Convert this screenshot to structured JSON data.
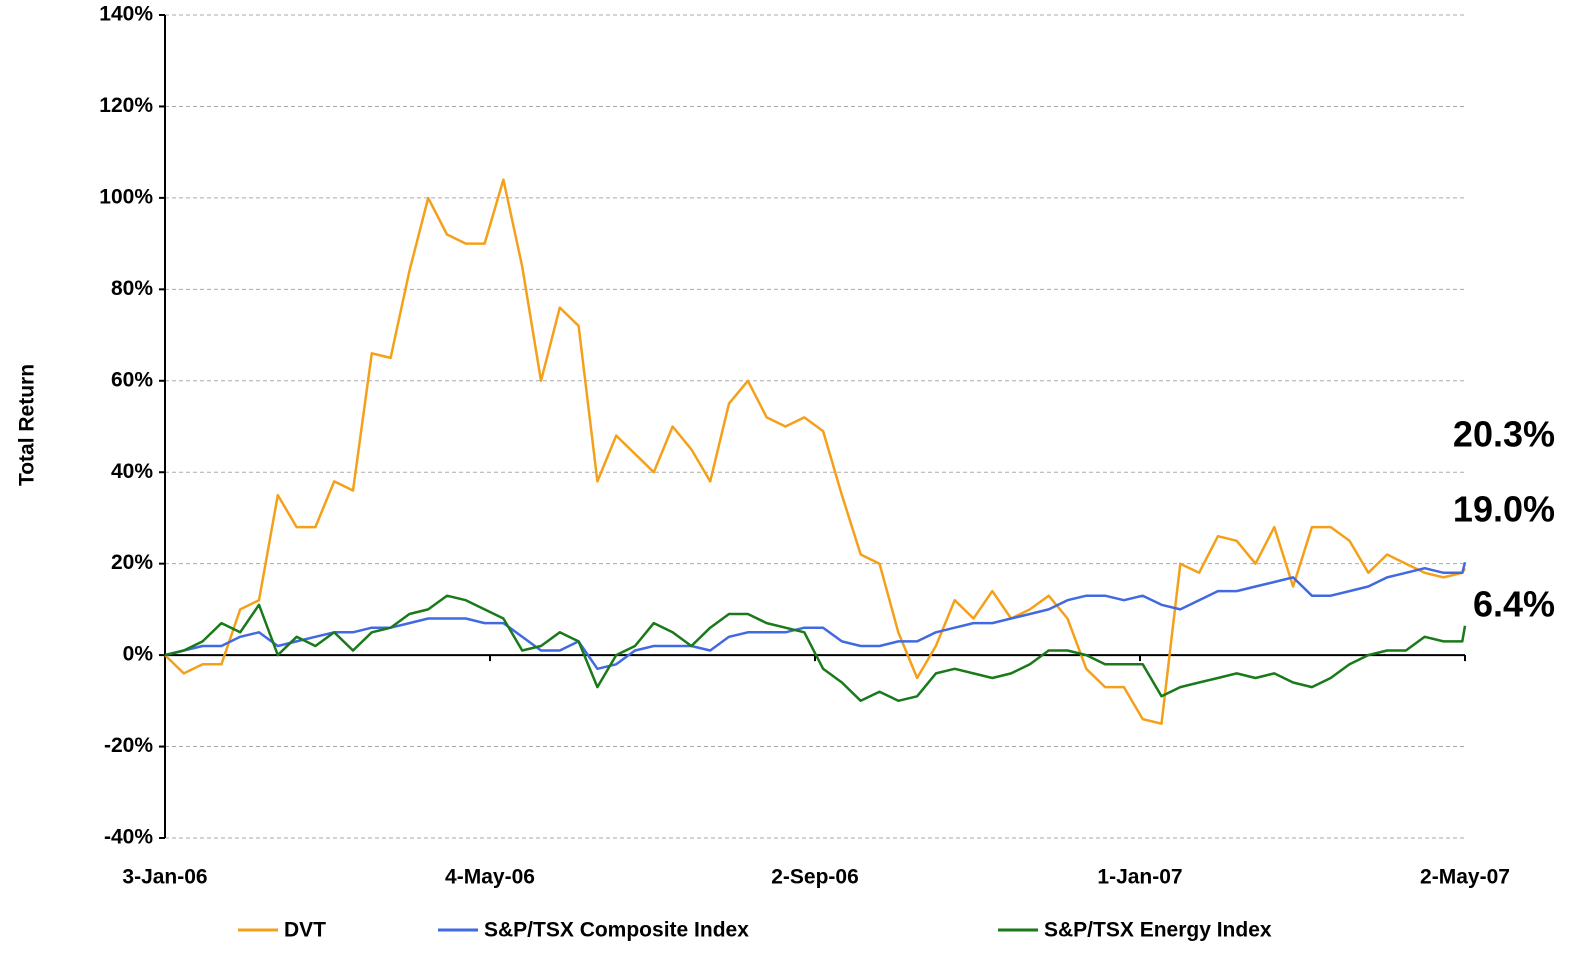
{
  "chart_data": {
    "type": "line",
    "y_label": "Total Return",
    "x": [
      "2006-01-03",
      "2006-01-10",
      "2006-01-17",
      "2006-01-24",
      "2006-01-31",
      "2006-02-07",
      "2006-02-14",
      "2006-02-21",
      "2006-02-28",
      "2006-03-07",
      "2006-03-14",
      "2006-03-21",
      "2006-03-28",
      "2006-04-04",
      "2006-04-11",
      "2006-04-18",
      "2006-04-25",
      "2006-05-02",
      "2006-05-09",
      "2006-05-16",
      "2006-05-23",
      "2006-05-30",
      "2006-06-06",
      "2006-06-13",
      "2006-06-20",
      "2006-06-27",
      "2006-07-04",
      "2006-07-11",
      "2006-07-18",
      "2006-07-25",
      "2006-08-01",
      "2006-08-08",
      "2006-08-15",
      "2006-08-22",
      "2006-08-29",
      "2006-09-05",
      "2006-09-12",
      "2006-09-19",
      "2006-09-26",
      "2006-10-03",
      "2006-10-10",
      "2006-10-17",
      "2006-10-24",
      "2006-10-31",
      "2006-11-07",
      "2006-11-14",
      "2006-11-21",
      "2006-11-28",
      "2006-12-05",
      "2006-12-12",
      "2006-12-19",
      "2006-12-26",
      "2007-01-02",
      "2007-01-09",
      "2007-01-16",
      "2007-01-23",
      "2007-01-30",
      "2007-02-06",
      "2007-02-13",
      "2007-02-20",
      "2007-02-27",
      "2007-03-06",
      "2007-03-13",
      "2007-03-20",
      "2007-03-27",
      "2007-04-03",
      "2007-04-10",
      "2007-04-17",
      "2007-04-24",
      "2007-05-01",
      "2007-05-02"
    ],
    "series": [
      {
        "name": "DVT",
        "color": "#f5a01a",
        "end_label": "19.0%",
        "values": [
          0,
          -4,
          -2,
          -2,
          10,
          12,
          35,
          28,
          28,
          38,
          36,
          66,
          65,
          84,
          100,
          92,
          90,
          90,
          104,
          85,
          60,
          76,
          72,
          38,
          48,
          44,
          40,
          50,
          45,
          38,
          55,
          60,
          52,
          50,
          52,
          49,
          35,
          22,
          20,
          5,
          -5,
          2,
          12,
          8,
          14,
          8,
          10,
          13,
          8,
          -3,
          -7,
          -7,
          -14,
          -15,
          20,
          18,
          26,
          25,
          20,
          28,
          15,
          28,
          28,
          25,
          18,
          22,
          20,
          18,
          17,
          18,
          19.0
        ]
      },
      {
        "name": "S&P/TSX Composite Index",
        "color": "#4169e1",
        "end_label": "20.3%",
        "values": [
          0,
          1,
          2,
          2,
          4,
          5,
          2,
          3,
          4,
          5,
          5,
          6,
          6,
          7,
          8,
          8,
          8,
          7,
          7,
          4,
          1,
          1,
          3,
          -3,
          -2,
          1,
          2,
          2,
          2,
          1,
          4,
          5,
          5,
          5,
          6,
          6,
          3,
          2,
          2,
          3,
          3,
          5,
          6,
          7,
          7,
          8,
          9,
          10,
          12,
          13,
          13,
          12,
          13,
          11,
          10,
          12,
          14,
          14,
          15,
          16,
          17,
          13,
          13,
          14,
          15,
          17,
          18,
          19,
          18,
          18,
          20.3
        ]
      },
      {
        "name": "S&P/TSX Energy Index",
        "color": "#1a7a1a",
        "end_label": "6.4%",
        "values": [
          0,
          1,
          3,
          7,
          5,
          11,
          0,
          4,
          2,
          5,
          1,
          5,
          6,
          9,
          10,
          13,
          12,
          10,
          8,
          1,
          2,
          5,
          3,
          -7,
          0,
          2,
          7,
          5,
          2,
          6,
          9,
          9,
          7,
          6,
          5,
          -3,
          -6,
          -10,
          -8,
          -10,
          -9,
          -4,
          -3,
          -4,
          -5,
          -4,
          -2,
          1,
          1,
          0,
          -2,
          -2,
          -2,
          -9,
          -7,
          -6,
          -5,
          -4,
          -5,
          -4,
          -6,
          -7,
          -5,
          -2,
          0,
          1,
          1,
          4,
          3,
          3,
          6.4
        ]
      }
    ],
    "xlim": [
      "2006-01-03",
      "2007-05-02"
    ],
    "xticks": [
      {
        "value": "2006-01-03",
        "label": "3-Jan-06"
      },
      {
        "value": "2006-05-04",
        "label": "4-May-06"
      },
      {
        "value": "2006-09-02",
        "label": "2-Sep-06"
      },
      {
        "value": "2007-01-01",
        "label": "1-Jan-07"
      },
      {
        "value": "2007-05-02",
        "label": "2-May-07"
      }
    ],
    "ylim": [
      -40,
      140
    ],
    "yticks": [
      {
        "value": -40,
        "label": "-40%"
      },
      {
        "value": -20,
        "label": "-20%"
      },
      {
        "value": 0,
        "label": "0%"
      },
      {
        "value": 20,
        "label": "20%"
      },
      {
        "value": 40,
        "label": "40%"
      },
      {
        "value": 60,
        "label": "60%"
      },
      {
        "value": 80,
        "label": "80%"
      },
      {
        "value": 100,
        "label": "100%"
      },
      {
        "value": 120,
        "label": "120%"
      },
      {
        "value": 140,
        "label": "140%"
      }
    ],
    "grid": true,
    "legend": "bottom"
  }
}
